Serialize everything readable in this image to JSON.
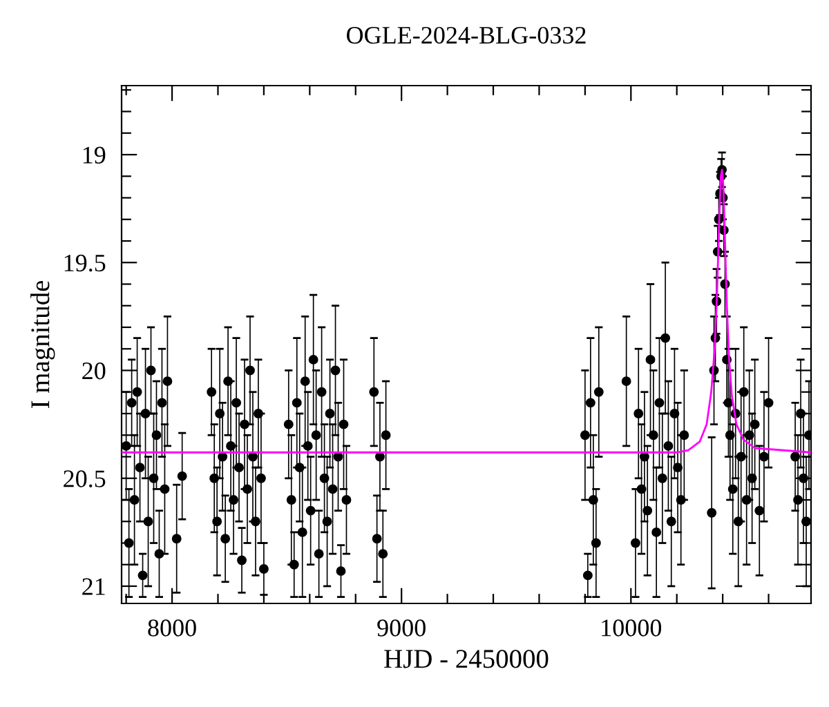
{
  "chart_data": {
    "type": "scatter",
    "title": "OGLE-2024-BLG-0332",
    "xlabel": "HJD - 2450000",
    "ylabel": "I magnitude",
    "xlim": [
      7780,
      10785
    ],
    "ylim": [
      21.08,
      18.68
    ],
    "xticks": [
      {
        "value": 7800,
        "label": null
      },
      8000,
      {
        "value": 8200,
        "label": null
      },
      {
        "value": 8400,
        "label": null
      },
      {
        "value": 8600,
        "label": null
      },
      {
        "value": 8800,
        "label": null
      },
      9000,
      {
        "value": 9200,
        "label": null
      },
      {
        "value": 9400,
        "label": null
      },
      {
        "value": 9600,
        "label": null
      },
      {
        "value": 9800,
        "label": null
      },
      10000,
      {
        "value": 10200,
        "label": null
      },
      {
        "value": 10400,
        "label": null
      },
      {
        "value": 10600,
        "label": null
      }
    ],
    "yticks": [
      {
        "value": 18.7,
        "label": null
      },
      {
        "value": 18.8,
        "label": null
      },
      {
        "value": 18.9,
        "label": null
      },
      19,
      {
        "value": 19.1,
        "label": null
      },
      {
        "value": 19.2,
        "label": null
      },
      {
        "value": 19.3,
        "label": null
      },
      {
        "value": 19.4,
        "label": null
      },
      19.5,
      {
        "value": 19.6,
        "label": null
      },
      {
        "value": 19.7,
        "label": null
      },
      {
        "value": 19.8,
        "label": null
      },
      {
        "value": 19.9,
        "label": null
      },
      20,
      {
        "value": 20.1,
        "label": null
      },
      {
        "value": 20.2,
        "label": null
      },
      {
        "value": 20.3,
        "label": null
      },
      {
        "value": 20.4,
        "label": null
      },
      20.5,
      {
        "value": 20.6,
        "label": null
      },
      {
        "value": 20.7,
        "label": null
      },
      {
        "value": 20.8,
        "label": null
      },
      {
        "value": 20.9,
        "label": null
      },
      21
    ],
    "grid": false,
    "legend": false,
    "series": [
      {
        "color": "#000000",
        "marker": "circle",
        "x": [
          7800,
          7812,
          7824,
          7836,
          7848,
          7860,
          7872,
          7884,
          7896,
          7908,
          7920,
          7932,
          7944,
          7956,
          7968,
          7980,
          8020,
          8044,
          8172,
          8184,
          8196,
          8208,
          8220,
          8232,
          8244,
          8256,
          8268,
          8280,
          8292,
          8304,
          8316,
          8328,
          8340,
          8352,
          8364,
          8376,
          8388,
          8400,
          8508,
          8520,
          8532,
          8544,
          8556,
          8568,
          8580,
          8592,
          8604,
          8616,
          8628,
          8640,
          8652,
          8664,
          8676,
          8688,
          8700,
          8712,
          8724,
          8736,
          8748,
          8760,
          8880,
          8893,
          8906,
          8919,
          8932,
          9800,
          9812,
          9824,
          9836,
          9848,
          9860,
          9980,
          10020,
          10033,
          10046,
          10059,
          10072,
          10085,
          10098,
          10111,
          10124,
          10137,
          10150,
          10163,
          10176,
          10190,
          10204,
          10218,
          10232,
          10352,
          10362,
          10368,
          10373,
          10378,
          10383,
          10388,
          10393,
          10397,
          10401,
          10405,
          10410,
          10418,
          10425,
          10432,
          10444,
          10456,
          10468,
          10480,
          10492,
          10504,
          10516,
          10528,
          10540,
          10560,
          10580,
          10600,
          10716,
          10728,
          10740,
          10752,
          10764,
          10776
        ],
        "values": [
          20.35,
          20.8,
          20.15,
          20.6,
          20.1,
          20.45,
          20.95,
          20.2,
          20.7,
          20.0,
          20.5,
          20.3,
          20.85,
          20.15,
          20.55,
          20.05,
          20.78,
          20.49,
          20.1,
          20.5,
          20.7,
          20.2,
          20.4,
          20.78,
          20.05,
          20.35,
          20.6,
          20.15,
          20.45,
          20.88,
          20.25,
          20.55,
          20.0,
          20.4,
          20.7,
          20.2,
          20.5,
          20.92,
          20.25,
          20.6,
          20.9,
          20.15,
          20.45,
          20.75,
          20.05,
          20.35,
          20.65,
          19.95,
          20.3,
          20.85,
          20.1,
          20.5,
          20.7,
          20.2,
          20.55,
          20.0,
          20.4,
          20.93,
          20.25,
          20.6,
          20.1,
          20.78,
          20.4,
          20.85,
          20.3,
          20.3,
          20.95,
          20.15,
          20.6,
          20.8,
          20.1,
          20.05,
          20.8,
          20.2,
          20.55,
          20.4,
          20.65,
          19.95,
          20.3,
          20.75,
          20.15,
          20.5,
          19.85,
          20.35,
          20.7,
          20.2,
          20.45,
          20.6,
          20.3,
          20.66,
          20.0,
          19.85,
          19.68,
          19.45,
          19.3,
          19.18,
          19.1,
          19.07,
          19.2,
          19.35,
          19.6,
          19.95,
          20.15,
          20.3,
          20.55,
          20.2,
          20.7,
          20.4,
          20.1,
          20.6,
          20.3,
          20.5,
          20.25,
          20.65,
          20.4,
          20.15,
          20.4,
          20.6,
          20.2,
          20.5,
          20.7,
          20.3
        ],
        "errors": [
          0.25,
          0.25,
          0.2,
          0.3,
          0.25,
          0.25,
          0.1,
          0.3,
          0.3,
          0.2,
          0.3,
          0.25,
          0.2,
          0.25,
          0.3,
          0.3,
          0.25,
          0.2,
          0.2,
          0.25,
          0.25,
          0.3,
          0.25,
          0.2,
          0.25,
          0.3,
          0.25,
          0.3,
          0.25,
          0.15,
          0.3,
          0.25,
          0.25,
          0.3,
          0.25,
          0.25,
          0.3,
          0.12,
          0.25,
          0.3,
          0.15,
          0.3,
          0.25,
          0.3,
          0.3,
          0.25,
          0.25,
          0.3,
          0.3,
          0.2,
          0.3,
          0.25,
          0.3,
          0.25,
          0.3,
          0.3,
          0.25,
          0.12,
          0.3,
          0.25,
          0.25,
          0.2,
          0.25,
          0.2,
          0.25,
          0.3,
          0.1,
          0.3,
          0.3,
          0.25,
          0.3,
          0.3,
          0.25,
          0.3,
          0.3,
          0.3,
          0.3,
          0.35,
          0.3,
          0.3,
          0.3,
          0.3,
          0.35,
          0.3,
          0.3,
          0.3,
          0.3,
          0.3,
          0.3,
          0.35,
          0.25,
          0.2,
          0.15,
          0.12,
          0.1,
          0.1,
          0.08,
          0.08,
          0.1,
          0.12,
          0.15,
          0.2,
          0.25,
          0.3,
          0.3,
          0.3,
          0.3,
          0.3,
          0.3,
          0.3,
          0.3,
          0.3,
          0.3,
          0.3,
          0.3,
          0.3,
          0.25,
          0.3,
          0.25,
          0.3,
          0.3,
          0.25
        ]
      },
      {
        "type": "line",
        "color": "#ff00ff",
        "marker": "none",
        "x": [
          7780,
          10200,
          10250,
          10300,
          10330,
          10350,
          10365,
          10375,
          10385,
          10392,
          10397,
          10403,
          10410,
          10418,
          10428,
          10440,
          10460,
          10490,
          10540,
          10785
        ],
        "values": [
          20.38,
          20.38,
          20.37,
          20.33,
          20.25,
          20.1,
          19.9,
          19.65,
          19.3,
          19.1,
          19.07,
          19.15,
          19.4,
          19.7,
          19.95,
          20.12,
          20.25,
          20.32,
          20.36,
          20.38
        ]
      }
    ]
  }
}
